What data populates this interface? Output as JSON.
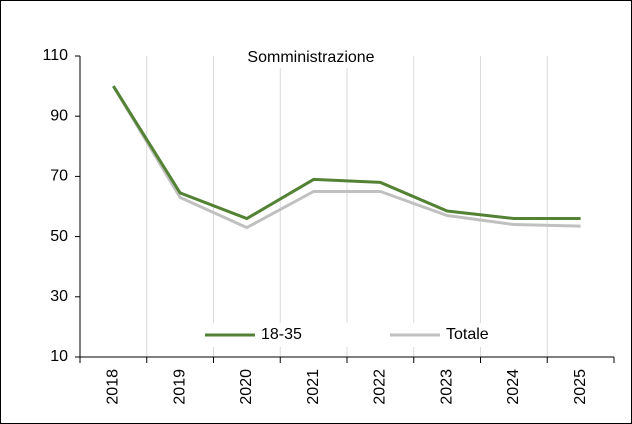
{
  "chart_data": {
    "type": "line",
    "title": "Somministrazione",
    "categories": [
      "2018",
      "2019",
      "2020",
      "2021",
      "2022",
      "2023",
      "2024",
      "2025"
    ],
    "series": [
      {
        "name": "18-35",
        "color": "#548235",
        "values": [
          100,
          64.5,
          56,
          69,
          68,
          58.5,
          56,
          56
        ]
      },
      {
        "name": "Totale",
        "color": "#c0c0c0",
        "values": [
          100,
          63,
          53,
          65,
          65,
          57,
          54,
          53.5
        ]
      }
    ],
    "ylim": [
      10,
      110
    ],
    "yticks": [
      10,
      30,
      50,
      70,
      90,
      110
    ],
    "grid": true,
    "legend": "bottom"
  }
}
